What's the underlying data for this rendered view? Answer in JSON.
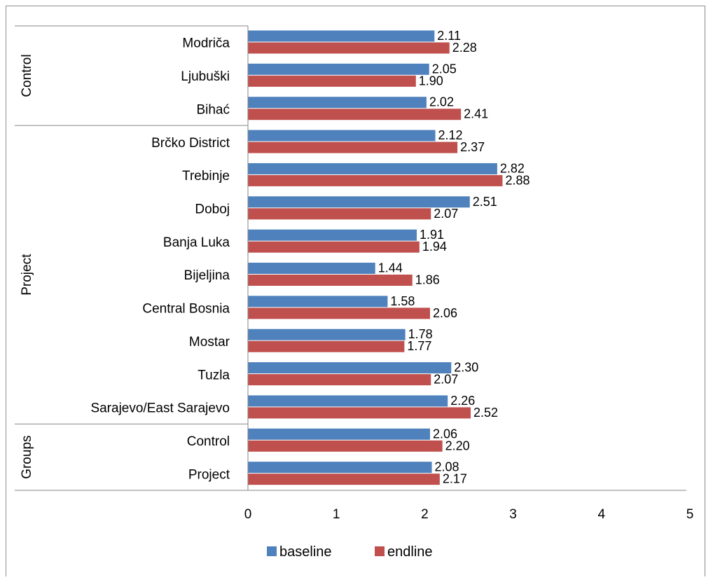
{
  "chart_data": {
    "type": "bar",
    "orientation": "horizontal",
    "categories": [
      "Modriča",
      "Ljubuški",
      "Bihać",
      "Brčko District",
      "Trebinje",
      "Doboj",
      "Banja Luka",
      "Bijeljina",
      "Central Bosnia",
      "Mostar",
      "Tuzla",
      "Sarajevo/East Sarajevo",
      "Control",
      "Project"
    ],
    "groups": [
      {
        "label": "Control",
        "categories": [
          "Modriča",
          "Ljubuški",
          "Bihać"
        ]
      },
      {
        "label": "Project",
        "categories": [
          "Brčko District",
          "Trebinje",
          "Doboj",
          "Banja Luka",
          "Bijeljina",
          "Central Bosnia",
          "Mostar",
          "Tuzla",
          "Sarajevo/East Sarajevo"
        ]
      },
      {
        "label": "Groups",
        "categories": [
          "Control",
          "Project"
        ]
      }
    ],
    "series": [
      {
        "name": "baseline",
        "color": "#4F81BD",
        "values": [
          2.11,
          2.05,
          2.02,
          2.12,
          2.82,
          2.51,
          1.91,
          1.44,
          1.58,
          1.78,
          2.3,
          2.26,
          2.06,
          2.08
        ],
        "labels": [
          "2.11",
          "2.05",
          "2.02",
          "2.12",
          "2.82",
          "2.51",
          "1.91",
          "1.44",
          "1.58",
          "1.78",
          "2.30",
          "2.26",
          "2.06",
          "2.08"
        ]
      },
      {
        "name": "endline",
        "color": "#C0504D",
        "values": [
          2.28,
          1.9,
          2.41,
          2.37,
          2.88,
          2.07,
          1.94,
          1.86,
          2.06,
          1.77,
          2.07,
          2.52,
          2.2,
          2.17
        ],
        "labels": [
          "2.28",
          "1.90",
          "2.41",
          "2.37",
          "2.88",
          "2.07",
          "1.94",
          "1.86",
          "2.06",
          "1.77",
          "2.07",
          "2.52",
          "2.20",
          "2.17"
        ]
      }
    ],
    "xticks": [
      "0",
      "1",
      "2",
      "3",
      "4",
      "5"
    ],
    "xlim": [
      0,
      5
    ],
    "title": "",
    "xlabel": "",
    "ylabel": "",
    "grid": false,
    "legend_position": "bottom"
  }
}
